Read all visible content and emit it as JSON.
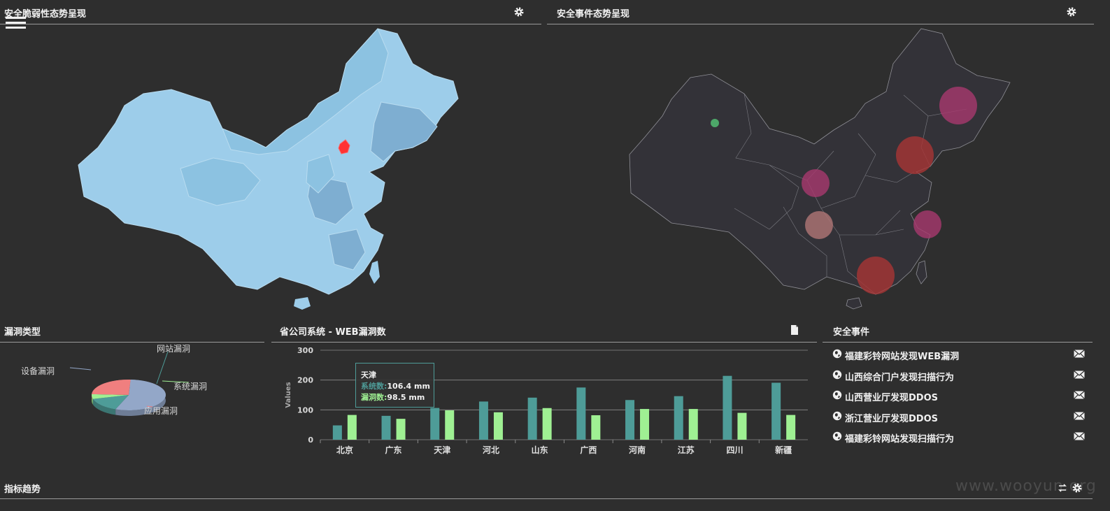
{
  "panels": {
    "vuln_map": {
      "title": "安全脆弱性态势呈现"
    },
    "event_map": {
      "title": "安全事件态势呈现"
    },
    "vuln_type": {
      "title": "漏洞类型"
    },
    "web_vuln": {
      "title": "省公司系统 - WEB漏洞数"
    },
    "events": {
      "title": "安全事件"
    },
    "trend": {
      "title": "指标趋势"
    }
  },
  "icons": {
    "menu": "hamburger-menu-icon",
    "settings": "gear-icon",
    "export": "document-icon",
    "globe": "globe-icon",
    "mail": "envelope-icon",
    "refresh": "refresh-icon"
  },
  "colors": {
    "background": "#2e2e2e",
    "map_fill": "#9dcdea",
    "map_fill_dark": "#7eaed1",
    "highlight": "#ff3333",
    "bar_systems": "#4e9c98",
    "bar_vulns": "#9ff093",
    "bubble_magenta": "#a8386e",
    "bubble_red": "#a83434",
    "bubble_pink": "#b07676",
    "dot_green": "#4fae6c"
  },
  "pie_chart": {
    "type": "pie",
    "slices": [
      {
        "label": "设备漏洞",
        "value": 55,
        "color": "#93a7c8"
      },
      {
        "label": "网站漏洞",
        "value": 15,
        "color": "#4e9c98"
      },
      {
        "label": "系统漏洞",
        "value": 5,
        "color": "#9ff093"
      },
      {
        "label": "应用漏洞",
        "value": 25,
        "color": "#f07f7f"
      }
    ]
  },
  "chart_data": {
    "type": "bar",
    "title": "省公司系统 - WEB漏洞数",
    "categories": [
      "北京",
      "广东",
      "天津",
      "河北",
      "山东",
      "广西",
      "河南",
      "江苏",
      "四川",
      "新疆"
    ],
    "series": [
      {
        "name": "系统数",
        "values": [
          48,
          80,
          106.4,
          128,
          141,
          175,
          133,
          146,
          214,
          191
        ]
      },
      {
        "name": "漏洞数",
        "values": [
          83,
          70,
          98.5,
          92,
          106,
          82,
          103,
          103,
          90,
          83
        ]
      }
    ],
    "ylabel": "Values",
    "ylim": [
      0,
      300
    ],
    "yticks": [
      "0",
      "100",
      "200",
      "300"
    ],
    "grid": true
  },
  "tooltip": {
    "category": "天津",
    "series1_label": "系统数:",
    "series1_value": "106.4 mm",
    "series2_label": "漏洞数:",
    "series2_value": "98.5 mm"
  },
  "events": [
    {
      "text": "福建彩铃网站发现WEB漏洞"
    },
    {
      "text": "山西综合门户发现扫描行为"
    },
    {
      "text": "山西营业厅发现DDOS"
    },
    {
      "text": "浙江营业厅发现DDOS"
    },
    {
      "text": "福建彩铃网站发现扫描行为"
    }
  ],
  "event_bubbles": [
    {
      "color": "#a8386e",
      "size": "large"
    },
    {
      "color": "#a83434",
      "size": "large"
    },
    {
      "color": "#a8386e",
      "size": "medium"
    },
    {
      "color": "#a8386e",
      "size": "medium"
    },
    {
      "color": "#b07676",
      "size": "medium"
    },
    {
      "color": "#a83434",
      "size": "large"
    },
    {
      "color": "#4fae6c",
      "size": "small"
    }
  ],
  "watermark": "www.wooyun.org"
}
